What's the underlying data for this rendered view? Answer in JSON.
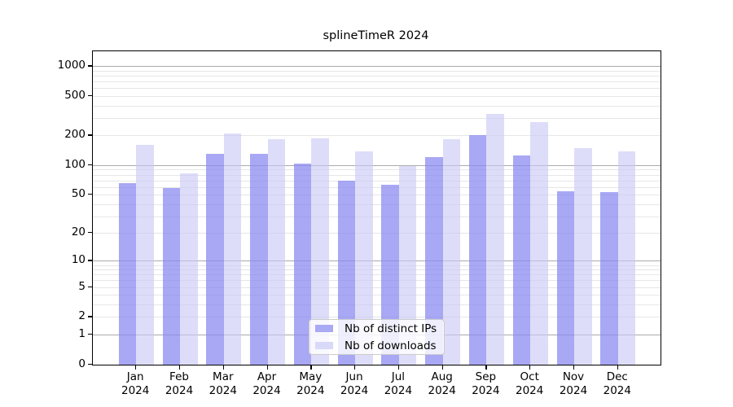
{
  "title": "splineTimeR 2024",
  "legend": {
    "items": [
      {
        "label": "Nb of distinct IPs",
        "color": "#a9a9f4"
      },
      {
        "label": "Nb of downloads",
        "color": "#d9d9f8"
      }
    ]
  },
  "y_axis": {
    "tick_labels": [
      "0",
      "1",
      "2",
      "5",
      "10",
      "20",
      "50",
      "100",
      "200",
      "500",
      "1000"
    ],
    "tick_values": [
      0,
      1,
      2,
      5,
      10,
      20,
      50,
      100,
      200,
      500,
      1000
    ],
    "major_grid_values": [
      1,
      10,
      100,
      1000
    ]
  },
  "x_axis": {
    "tick_labels": [
      "Jan\n2024",
      "Feb\n2024",
      "Mar\n2024",
      "Apr\n2024",
      "May\n2024",
      "Jun\n2024",
      "Jul\n2024",
      "Aug\n2024",
      "Sep\n2024",
      "Oct\n2024",
      "Nov\n2024",
      "Dec\n2024"
    ]
  },
  "chart_data": {
    "type": "bar",
    "title": "splineTimeR 2024",
    "categories": [
      "Jan 2024",
      "Feb 2024",
      "Mar 2024",
      "Apr 2024",
      "May 2024",
      "Jun 2024",
      "Jul 2024",
      "Aug 2024",
      "Sep 2024",
      "Oct 2024",
      "Nov 2024",
      "Dec 2024"
    ],
    "series": [
      {
        "name": "Nb of distinct IPs",
        "color": "#a9a9f4",
        "values": [
          65,
          58,
          130,
          131,
          104,
          70,
          63,
          121,
          200,
          125,
          54,
          53
        ]
      },
      {
        "name": "Nb of downloads",
        "color": "#d9d9f8",
        "values": [
          160,
          83,
          208,
          183,
          188,
          139,
          98,
          182,
          328,
          273,
          149,
          138
        ]
      }
    ],
    "scale": "log1p",
    "yticks": [
      0,
      1,
      2,
      5,
      10,
      20,
      50,
      100,
      200,
      500,
      1000
    ],
    "ylim": [
      0,
      1400
    ],
    "grid": "on",
    "legend_position": "lower center"
  }
}
